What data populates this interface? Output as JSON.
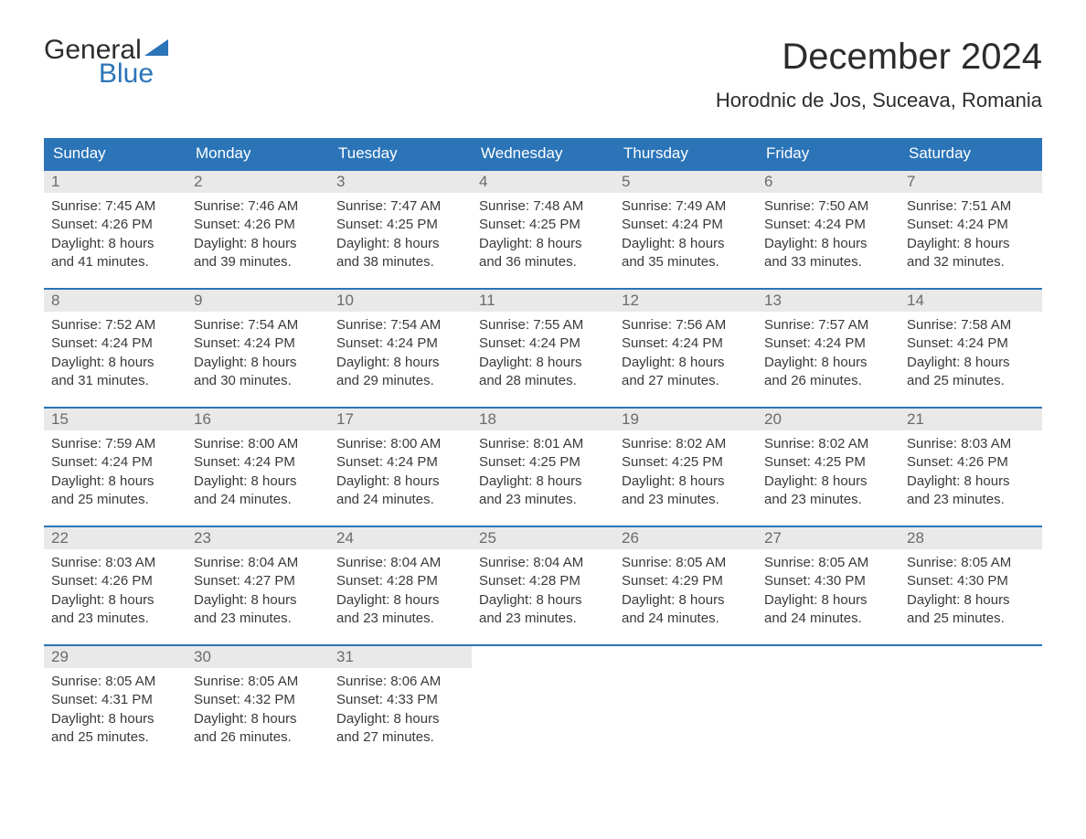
{
  "brand": {
    "line1": "General",
    "line2": "Blue"
  },
  "title": "December 2024",
  "location": "Horodnic de Jos, Suceava, Romania",
  "colors": {
    "header_bg": "#2b74b8",
    "header_text": "#ffffff",
    "week_border": "#2b74b8",
    "daynum_bg": "#e9e9e9",
    "daynum_text": "#6b6b6b",
    "body_text": "#3a3a3a",
    "background": "#ffffff"
  },
  "typography": {
    "title_size": 40,
    "location_size": 22,
    "dayhead_size": 17,
    "cell_size": 15
  },
  "day_headers": [
    "Sunday",
    "Monday",
    "Tuesday",
    "Wednesday",
    "Thursday",
    "Friday",
    "Saturday"
  ],
  "weeks": [
    [
      {
        "n": "1",
        "sunrise": "Sunrise: 7:45 AM",
        "sunset": "Sunset: 4:26 PM",
        "d1": "Daylight: 8 hours",
        "d2": "and 41 minutes."
      },
      {
        "n": "2",
        "sunrise": "Sunrise: 7:46 AM",
        "sunset": "Sunset: 4:26 PM",
        "d1": "Daylight: 8 hours",
        "d2": "and 39 minutes."
      },
      {
        "n": "3",
        "sunrise": "Sunrise: 7:47 AM",
        "sunset": "Sunset: 4:25 PM",
        "d1": "Daylight: 8 hours",
        "d2": "and 38 minutes."
      },
      {
        "n": "4",
        "sunrise": "Sunrise: 7:48 AM",
        "sunset": "Sunset: 4:25 PM",
        "d1": "Daylight: 8 hours",
        "d2": "and 36 minutes."
      },
      {
        "n": "5",
        "sunrise": "Sunrise: 7:49 AM",
        "sunset": "Sunset: 4:24 PM",
        "d1": "Daylight: 8 hours",
        "d2": "and 35 minutes."
      },
      {
        "n": "6",
        "sunrise": "Sunrise: 7:50 AM",
        "sunset": "Sunset: 4:24 PM",
        "d1": "Daylight: 8 hours",
        "d2": "and 33 minutes."
      },
      {
        "n": "7",
        "sunrise": "Sunrise: 7:51 AM",
        "sunset": "Sunset: 4:24 PM",
        "d1": "Daylight: 8 hours",
        "d2": "and 32 minutes."
      }
    ],
    [
      {
        "n": "8",
        "sunrise": "Sunrise: 7:52 AM",
        "sunset": "Sunset: 4:24 PM",
        "d1": "Daylight: 8 hours",
        "d2": "and 31 minutes."
      },
      {
        "n": "9",
        "sunrise": "Sunrise: 7:54 AM",
        "sunset": "Sunset: 4:24 PM",
        "d1": "Daylight: 8 hours",
        "d2": "and 30 minutes."
      },
      {
        "n": "10",
        "sunrise": "Sunrise: 7:54 AM",
        "sunset": "Sunset: 4:24 PM",
        "d1": "Daylight: 8 hours",
        "d2": "and 29 minutes."
      },
      {
        "n": "11",
        "sunrise": "Sunrise: 7:55 AM",
        "sunset": "Sunset: 4:24 PM",
        "d1": "Daylight: 8 hours",
        "d2": "and 28 minutes."
      },
      {
        "n": "12",
        "sunrise": "Sunrise: 7:56 AM",
        "sunset": "Sunset: 4:24 PM",
        "d1": "Daylight: 8 hours",
        "d2": "and 27 minutes."
      },
      {
        "n": "13",
        "sunrise": "Sunrise: 7:57 AM",
        "sunset": "Sunset: 4:24 PM",
        "d1": "Daylight: 8 hours",
        "d2": "and 26 minutes."
      },
      {
        "n": "14",
        "sunrise": "Sunrise: 7:58 AM",
        "sunset": "Sunset: 4:24 PM",
        "d1": "Daylight: 8 hours",
        "d2": "and 25 minutes."
      }
    ],
    [
      {
        "n": "15",
        "sunrise": "Sunrise: 7:59 AM",
        "sunset": "Sunset: 4:24 PM",
        "d1": "Daylight: 8 hours",
        "d2": "and 25 minutes."
      },
      {
        "n": "16",
        "sunrise": "Sunrise: 8:00 AM",
        "sunset": "Sunset: 4:24 PM",
        "d1": "Daylight: 8 hours",
        "d2": "and 24 minutes."
      },
      {
        "n": "17",
        "sunrise": "Sunrise: 8:00 AM",
        "sunset": "Sunset: 4:24 PM",
        "d1": "Daylight: 8 hours",
        "d2": "and 24 minutes."
      },
      {
        "n": "18",
        "sunrise": "Sunrise: 8:01 AM",
        "sunset": "Sunset: 4:25 PM",
        "d1": "Daylight: 8 hours",
        "d2": "and 23 minutes."
      },
      {
        "n": "19",
        "sunrise": "Sunrise: 8:02 AM",
        "sunset": "Sunset: 4:25 PM",
        "d1": "Daylight: 8 hours",
        "d2": "and 23 minutes."
      },
      {
        "n": "20",
        "sunrise": "Sunrise: 8:02 AM",
        "sunset": "Sunset: 4:25 PM",
        "d1": "Daylight: 8 hours",
        "d2": "and 23 minutes."
      },
      {
        "n": "21",
        "sunrise": "Sunrise: 8:03 AM",
        "sunset": "Sunset: 4:26 PM",
        "d1": "Daylight: 8 hours",
        "d2": "and 23 minutes."
      }
    ],
    [
      {
        "n": "22",
        "sunrise": "Sunrise: 8:03 AM",
        "sunset": "Sunset: 4:26 PM",
        "d1": "Daylight: 8 hours",
        "d2": "and 23 minutes."
      },
      {
        "n": "23",
        "sunrise": "Sunrise: 8:04 AM",
        "sunset": "Sunset: 4:27 PM",
        "d1": "Daylight: 8 hours",
        "d2": "and 23 minutes."
      },
      {
        "n": "24",
        "sunrise": "Sunrise: 8:04 AM",
        "sunset": "Sunset: 4:28 PM",
        "d1": "Daylight: 8 hours",
        "d2": "and 23 minutes."
      },
      {
        "n": "25",
        "sunrise": "Sunrise: 8:04 AM",
        "sunset": "Sunset: 4:28 PM",
        "d1": "Daylight: 8 hours",
        "d2": "and 23 minutes."
      },
      {
        "n": "26",
        "sunrise": "Sunrise: 8:05 AM",
        "sunset": "Sunset: 4:29 PM",
        "d1": "Daylight: 8 hours",
        "d2": "and 24 minutes."
      },
      {
        "n": "27",
        "sunrise": "Sunrise: 8:05 AM",
        "sunset": "Sunset: 4:30 PM",
        "d1": "Daylight: 8 hours",
        "d2": "and 24 minutes."
      },
      {
        "n": "28",
        "sunrise": "Sunrise: 8:05 AM",
        "sunset": "Sunset: 4:30 PM",
        "d1": "Daylight: 8 hours",
        "d2": "and 25 minutes."
      }
    ],
    [
      {
        "n": "29",
        "sunrise": "Sunrise: 8:05 AM",
        "sunset": "Sunset: 4:31 PM",
        "d1": "Daylight: 8 hours",
        "d2": "and 25 minutes."
      },
      {
        "n": "30",
        "sunrise": "Sunrise: 8:05 AM",
        "sunset": "Sunset: 4:32 PM",
        "d1": "Daylight: 8 hours",
        "d2": "and 26 minutes."
      },
      {
        "n": "31",
        "sunrise": "Sunrise: 8:06 AM",
        "sunset": "Sunset: 4:33 PM",
        "d1": "Daylight: 8 hours",
        "d2": "and 27 minutes."
      },
      {
        "empty": true
      },
      {
        "empty": true
      },
      {
        "empty": true
      },
      {
        "empty": true
      }
    ]
  ]
}
